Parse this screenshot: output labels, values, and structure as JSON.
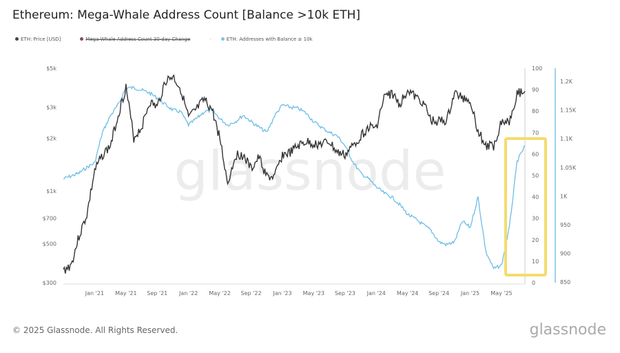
{
  "title": "Ethereum: Mega-Whale Address Count [Balance >10k ETH]",
  "legend": [
    {
      "label": "ETH: Price [USD]",
      "color": "#444444",
      "hidden": false
    },
    {
      "label": "Mega-Whale Address Count 30-day Change",
      "color": "#8a4a5a",
      "hidden": true
    },
    {
      "label": "ETH: Addresses with Balance ≥ 10k",
      "color": "#7ec3e6",
      "hidden": false
    }
  ],
  "footer": "© 2025 Glassnode. All Rights Reserved.",
  "brand": "glassnode",
  "watermark": "glassnode",
  "colors": {
    "price": "#333333",
    "addresses": "#6dbde6",
    "highlight": "#f3dc6e"
  },
  "chart_data": {
    "type": "line",
    "title": "Ethereum: Mega-Whale Address Count [Balance >10k ETH]",
    "x": [
      "2020-09",
      "2020-10",
      "2020-11",
      "2020-12",
      "2021-01",
      "2021-02",
      "2021-03",
      "2021-04",
      "2021-05",
      "2021-06",
      "2021-07",
      "2021-08",
      "2021-09",
      "2021-10",
      "2021-11",
      "2021-12",
      "2022-01",
      "2022-02",
      "2022-03",
      "2022-04",
      "2022-05",
      "2022-06",
      "2022-07",
      "2022-08",
      "2022-09",
      "2022-10",
      "2022-11",
      "2022-12",
      "2023-01",
      "2023-02",
      "2023-03",
      "2023-04",
      "2023-05",
      "2023-06",
      "2023-07",
      "2023-08",
      "2023-09",
      "2023-10",
      "2023-11",
      "2023-12",
      "2024-01",
      "2024-02",
      "2024-03",
      "2024-04",
      "2024-05",
      "2024-06",
      "2024-07",
      "2024-08",
      "2024-09",
      "2024-10",
      "2024-11",
      "2024-12",
      "2025-01",
      "2025-02",
      "2025-03",
      "2025-04",
      "2025-05",
      "2025-06",
      "2025-07",
      "2025-08"
    ],
    "x_ticks": [
      "Jan '21",
      "May '21",
      "Sep '21",
      "Jan '22",
      "May '22",
      "Sep '22",
      "Jan '23",
      "May '23",
      "Sep '23",
      "Jan '24",
      "May '24",
      "Sep '24",
      "Jan '25",
      "May '25"
    ],
    "series": [
      {
        "name": "ETH: Price [USD]",
        "axis": "left-log",
        "values": [
          350,
          380,
          550,
          730,
          1300,
          1600,
          1800,
          2700,
          3900,
          2000,
          2300,
          3200,
          3000,
          4200,
          4500,
          3800,
          2600,
          2900,
          3300,
          2900,
          2000,
          1100,
          1600,
          1600,
          1330,
          1550,
          1200,
          1200,
          1600,
          1650,
          1800,
          1900,
          1850,
          1850,
          1900,
          1650,
          1600,
          1800,
          2050,
          2300,
          2300,
          3400,
          3600,
          3100,
          3800,
          3400,
          3200,
          2500,
          2500,
          2500,
          3600,
          3400,
          3300,
          2200,
          1800,
          1800,
          2500,
          2500,
          3600,
          3700
        ]
      },
      {
        "name": "ETH: Addresses with Balance ≥ 10k",
        "axis": "right-outer",
        "values": [
          1030,
          1035,
          1040,
          1050,
          1058,
          1111,
          1140,
          1159,
          1189,
          1189,
          1185,
          1180,
          1171,
          1160,
          1150,
          1147,
          1124,
          1135,
          1147,
          1150,
          1135,
          1124,
          1130,
          1141,
          1130,
          1120,
          1111,
          1140,
          1159,
          1155,
          1153,
          1145,
          1130,
          1120,
          1111,
          1105,
          1088,
          1060,
          1040,
          1030,
          1016,
          1005,
          998,
          985,
          968,
          960,
          950,
          940,
          920,
          915,
          920,
          956,
          945,
          998,
          903,
          873,
          879,
          944,
          1060,
          1088
        ]
      }
    ],
    "y_left": {
      "ticks": [
        "$300",
        "$500",
        "$700",
        "$1k",
        "$2k",
        "$3k",
        "$5k"
      ],
      "values": [
        300,
        500,
        700,
        1000,
        2000,
        3000,
        5000
      ],
      "scale": "log"
    },
    "y_right_inner": {
      "ticks": [
        "0",
        "10",
        "20",
        "30",
        "40",
        "50",
        "60",
        "70",
        "80",
        "90",
        "100"
      ],
      "range": [
        0,
        100
      ]
    },
    "y_right_outer": {
      "ticks": [
        "850",
        "900",
        "950",
        "1K",
        "1.05K",
        "1.1K",
        "1.15K",
        "1.2K"
      ],
      "values": [
        850,
        900,
        950,
        1000,
        1050,
        1100,
        1150,
        1200
      ],
      "range": [
        850,
        1223
      ]
    },
    "annotation": "highlight box around 2025-04 to 2025-08 address surge"
  }
}
